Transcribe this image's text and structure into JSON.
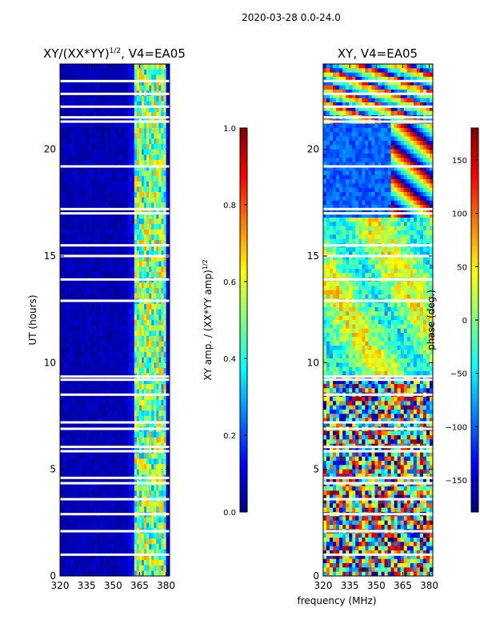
{
  "figure": {
    "suptitle": "2020-03-28 0.0-24.0",
    "shared_xlabel": "frequency (MHz)"
  },
  "colors": {
    "jet_stops": [
      "#00007f",
      "#0000ff",
      "#007fff",
      "#00ffff",
      "#7fff7f",
      "#ffff00",
      "#ff7f00",
      "#ff0000",
      "#7f0000"
    ],
    "gap": "#ffffff",
    "axes": "#000000"
  },
  "chart_data": [
    {
      "type": "heatmap",
      "title_main": "XY/(XX*YY)",
      "title_sup": "1/2",
      "title_tail": ", V4=EA05",
      "xlabel": "",
      "ylabel": "UT (hours)",
      "xlim": [
        320,
        382
      ],
      "ylim": [
        0,
        24
      ],
      "xticks": [
        320,
        335,
        350,
        365,
        380
      ],
      "yticks": [
        0,
        5,
        10,
        15,
        20
      ],
      "colorbar": {
        "label_main": "XY amp. / (XX*YY amp)",
        "label_sup": "1/2",
        "range": [
          0.0,
          1.0
        ],
        "ticks": [
          "0.0",
          "0.2",
          "0.4",
          "0.6",
          "0.8",
          "1.0"
        ]
      },
      "bands": [
        {
          "from_mhz": 320,
          "to_mhz": 359,
          "level": 0.05,
          "note": "low amplitude, mostly dark blue"
        },
        {
          "from_mhz": 359,
          "to_mhz": 362,
          "level": 0.12
        },
        {
          "from_mhz": 362,
          "to_mhz": 380,
          "level": 0.5,
          "note": "bright striped band, 0.3-0.8"
        },
        {
          "from_mhz": 380,
          "to_mhz": 382,
          "level": 0.1
        }
      ],
      "data_gaps_hours": [
        1.0,
        2.1,
        2.9,
        3.6,
        4.35,
        4.6,
        5.85,
        6.05,
        6.9,
        7.2,
        8.5,
        9.2,
        9.35,
        12.9,
        13.9,
        15.0,
        15.5,
        17.0,
        17.2,
        19.2,
        21.3,
        21.5,
        22.0,
        22.6,
        23.2
      ]
    },
    {
      "type": "heatmap",
      "title_main": "XY, V4=EA05",
      "xlabel": "",
      "ylabel": "",
      "xlim": [
        320,
        382
      ],
      "ylim": [
        0,
        24
      ],
      "xticks": [
        320,
        335,
        350,
        365,
        380
      ],
      "yticks": [
        0,
        5,
        10,
        15,
        20
      ],
      "colorbar": {
        "label_main": "phase (deg.)",
        "range": [
          -180,
          180
        ],
        "ticks": [
          "−150",
          "−100",
          "−50",
          "0",
          "50",
          "100",
          "150"
        ]
      },
      "time_segments": [
        {
          "from_hours": 0,
          "to_hours": 9.5,
          "pattern": "noisy mixed phase"
        },
        {
          "from_hours": 9.5,
          "to_hours": 16.8,
          "pattern": "phase near 0-50 deg, greenish"
        },
        {
          "from_hours": 16.8,
          "to_hours": 21.3,
          "pattern": "blue low-frequency, wrapping high-frequency"
        },
        {
          "from_hours": 21.3,
          "to_hours": 24,
          "pattern": "mixed wrapping phase"
        }
      ],
      "data_gaps_hours": [
        1.0,
        2.1,
        2.9,
        3.6,
        4.35,
        4.6,
        5.85,
        6.05,
        6.9,
        7.2,
        8.5,
        9.2,
        9.35,
        12.9,
        13.9,
        15.0,
        15.5,
        17.0,
        17.2,
        19.2,
        21.3,
        21.5,
        22.0,
        22.6,
        23.2
      ]
    }
  ]
}
